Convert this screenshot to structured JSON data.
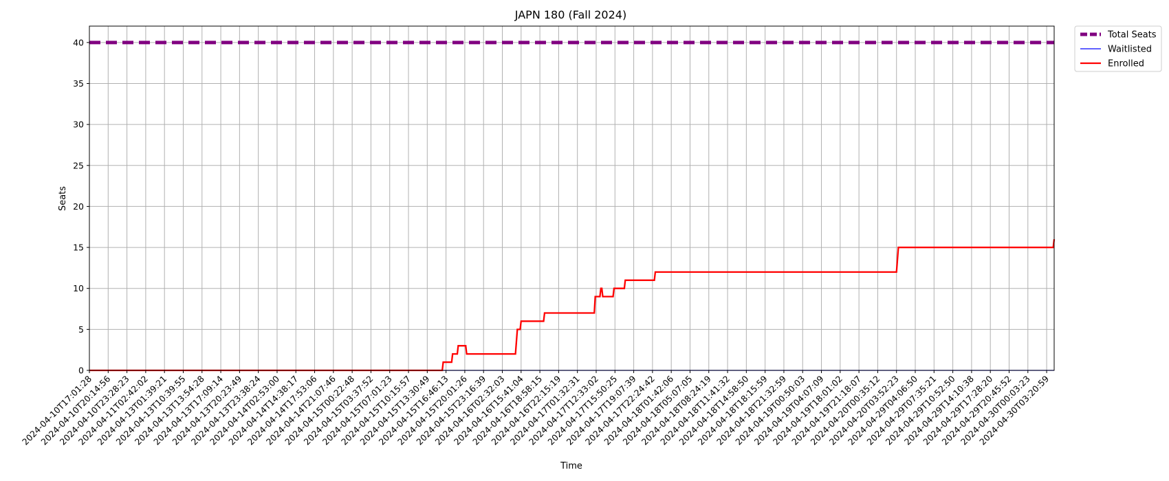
{
  "chart_data": {
    "type": "line",
    "title": "JAPN 180 (Fall 2024)",
    "xlabel": "Time",
    "ylabel": "Seats",
    "ylim": [
      0,
      42
    ],
    "yticks": [
      0,
      5,
      10,
      15,
      20,
      25,
      30,
      35,
      40
    ],
    "grid": true,
    "legend_position": "outside-top-right",
    "categories": [
      "2024-04-10T17:01:28",
      "2024-04-10T20:14:56",
      "2024-04-10T23:28:23",
      "2024-04-11T02:42:02",
      "2024-04-13T01:39:21",
      "2024-04-13T10:39:55",
      "2024-04-13T13:54:28",
      "2024-04-13T17:09:14",
      "2024-04-13T20:23:49",
      "2024-04-13T23:38:24",
      "2024-04-14T02:53:00",
      "2024-04-14T14:38:17",
      "2024-04-14T17:53:06",
      "2024-04-14T21:07:46",
      "2024-04-15T00:22:48",
      "2024-04-15T03:37:52",
      "2024-04-15T07:01:23",
      "2024-04-15T10:15:57",
      "2024-04-15T13:30:49",
      "2024-04-15T16:46:13",
      "2024-04-15T20:01:26",
      "2024-04-15T23:16:39",
      "2024-04-16T02:32:03",
      "2024-04-16T15:41:04",
      "2024-04-16T18:58:15",
      "2024-04-16T22:15:19",
      "2024-04-17T01:32:31",
      "2024-04-17T12:33:02",
      "2024-04-17T15:50:25",
      "2024-04-17T19:07:39",
      "2024-04-17T22:24:42",
      "2024-04-18T01:42:06",
      "2024-04-18T05:07:05",
      "2024-04-18T08:24:19",
      "2024-04-18T11:41:32",
      "2024-04-18T14:58:50",
      "2024-04-18T18:15:59",
      "2024-04-18T21:32:59",
      "2024-04-19T00:50:03",
      "2024-04-19T04:07:09",
      "2024-04-19T18:01:02",
      "2024-04-19T21:18:07",
      "2024-04-20T00:35:12",
      "2024-04-20T03:52:23",
      "2024-04-29T04:06:50",
      "2024-04-29T07:35:21",
      "2024-04-29T10:52:50",
      "2024-04-29T14:10:38",
      "2024-04-29T17:28:20",
      "2024-04-29T20:45:52",
      "2024-04-30T00:03:23",
      "2024-04-30T03:20:59"
    ],
    "x_range": [
      0,
      51.4
    ],
    "series": [
      {
        "name": "Total Seats",
        "color": "#800080",
        "style": "dashed",
        "points": [
          [
            0,
            40
          ],
          [
            51.4,
            40
          ]
        ]
      },
      {
        "name": "Waitlisted",
        "color": "#0000ff",
        "style": "solid",
        "points": [
          [
            0,
            0
          ],
          [
            51.4,
            0
          ]
        ]
      },
      {
        "name": "Enrolled",
        "color": "#ff0000",
        "style": "solid",
        "points": [
          [
            0,
            0
          ],
          [
            18.8,
            0
          ],
          [
            18.85,
            1
          ],
          [
            19.3,
            1
          ],
          [
            19.35,
            2
          ],
          [
            19.6,
            2
          ],
          [
            19.65,
            3
          ],
          [
            20.05,
            3
          ],
          [
            20.1,
            2
          ],
          [
            22.7,
            2
          ],
          [
            22.8,
            5
          ],
          [
            22.95,
            5
          ],
          [
            23.0,
            6
          ],
          [
            24.2,
            6
          ],
          [
            24.25,
            7
          ],
          [
            26.9,
            7
          ],
          [
            26.95,
            9
          ],
          [
            27.2,
            9
          ],
          [
            27.25,
            10
          ],
          [
            27.3,
            10
          ],
          [
            27.35,
            9
          ],
          [
            27.9,
            9
          ],
          [
            27.95,
            10
          ],
          [
            28.5,
            10
          ],
          [
            28.55,
            11
          ],
          [
            30.1,
            11
          ],
          [
            30.15,
            12
          ],
          [
            43.0,
            12
          ],
          [
            43.1,
            15
          ],
          [
            51.35,
            15
          ],
          [
            51.4,
            16
          ]
        ]
      }
    ]
  }
}
